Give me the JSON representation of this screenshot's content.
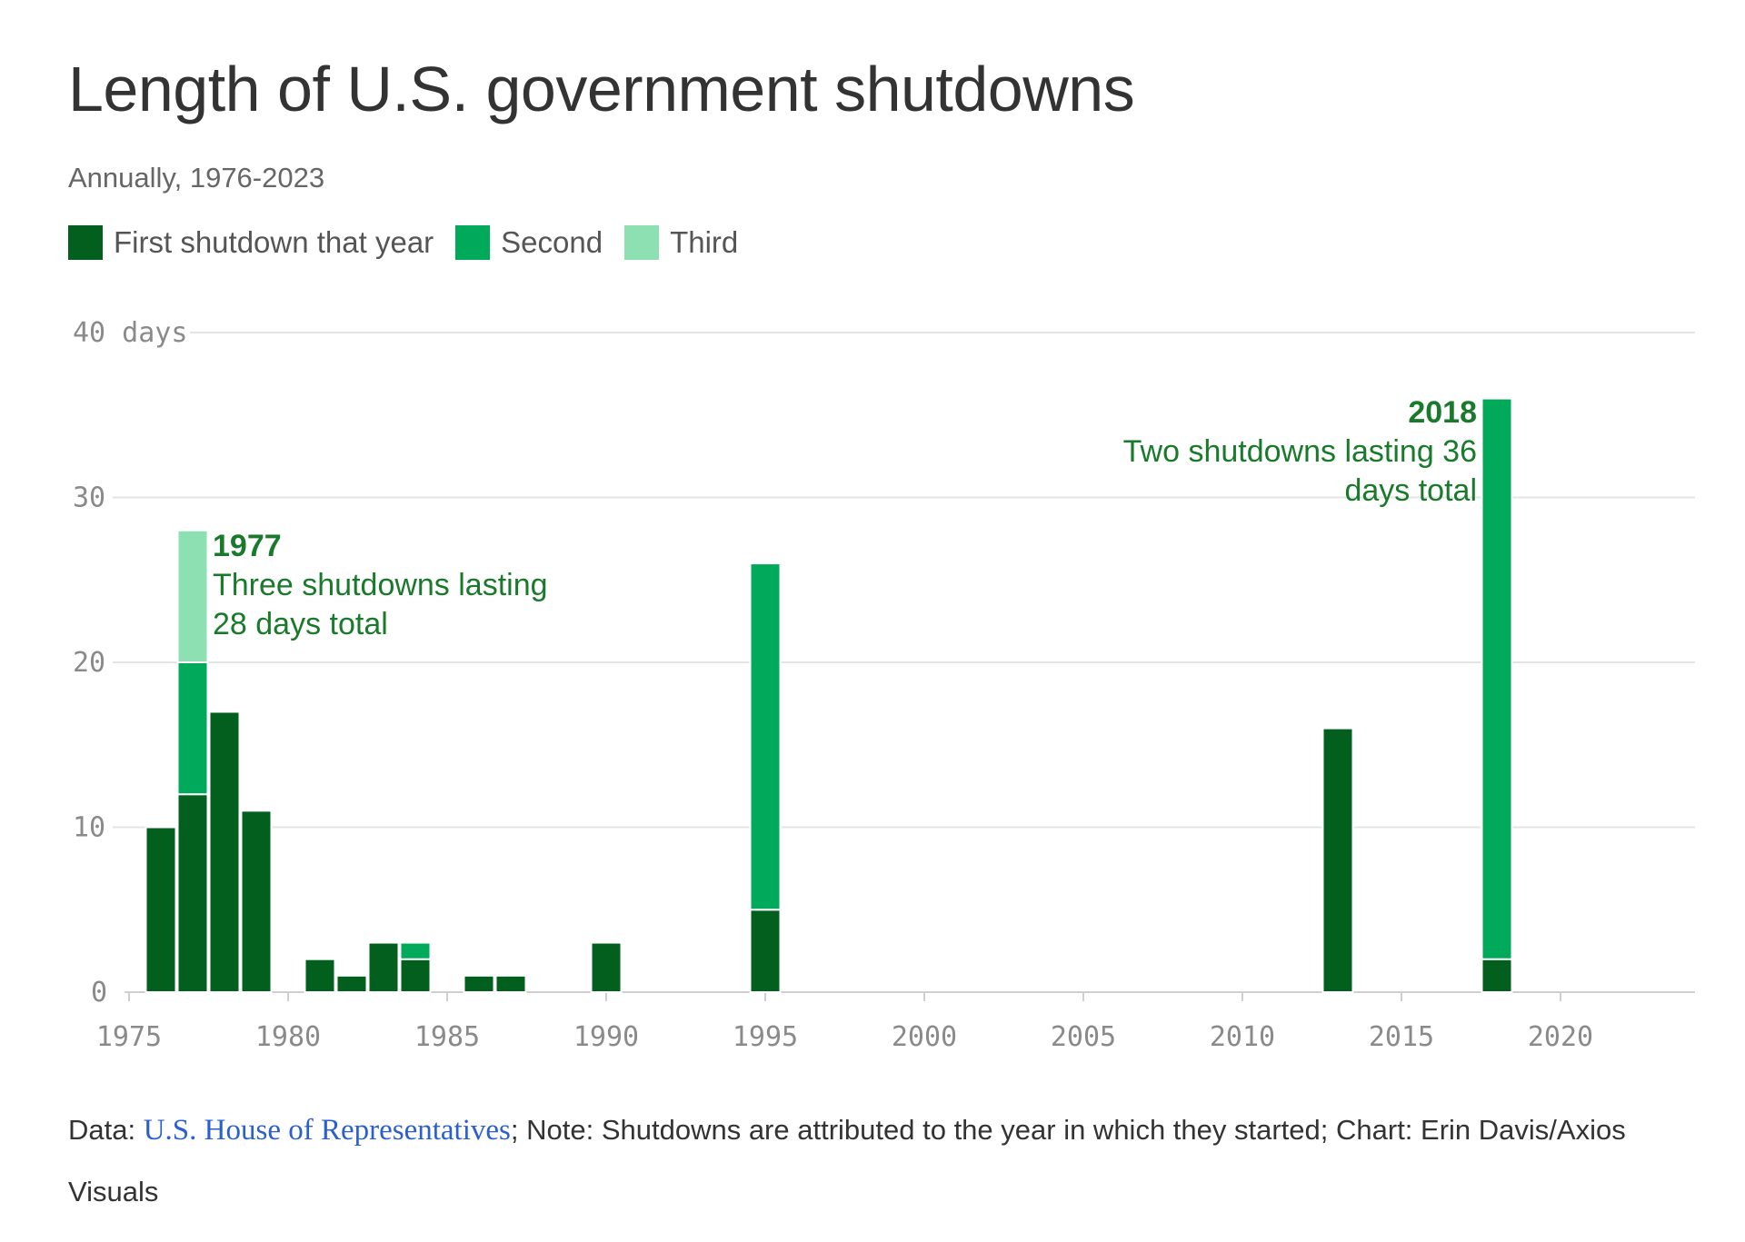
{
  "title": "Length of U.S. government shutdowns",
  "subtitle": "Annually, 1976-2023",
  "legend": [
    {
      "label": "First shutdown that year",
      "color": "#035f1d"
    },
    {
      "label": "Second",
      "color": "#00aa5a"
    },
    {
      "label": "Third",
      "color": "#8de0b1"
    }
  ],
  "chart_data": {
    "type": "bar",
    "stacked": true,
    "title": "Length of U.S. government shutdowns",
    "subtitle": "Annually, 1976-2023",
    "xlabel": "",
    "ylabel": "days",
    "x_range": [
      1975,
      2024
    ],
    "ylim": [
      0,
      40
    ],
    "y_ticks": [
      0,
      10,
      20,
      30,
      40
    ],
    "y_tick_labels": [
      "0",
      "10",
      "20",
      "30",
      "40 days"
    ],
    "x_ticks": [
      1975,
      1980,
      1985,
      1990,
      1995,
      2000,
      2005,
      2010,
      2015,
      2020
    ],
    "grid": true,
    "legend_position": "top-left",
    "series": [
      {
        "name": "First shutdown that year",
        "color": "#035f1d",
        "points": [
          [
            1976,
            10
          ],
          [
            1977,
            12
          ],
          [
            1978,
            17
          ],
          [
            1979,
            11
          ],
          [
            1981,
            2
          ],
          [
            1982,
            1
          ],
          [
            1983,
            3
          ],
          [
            1984,
            2
          ],
          [
            1986,
            1
          ],
          [
            1987,
            1
          ],
          [
            1990,
            3
          ],
          [
            1995,
            5
          ],
          [
            2013,
            16
          ],
          [
            2018,
            2
          ]
        ]
      },
      {
        "name": "Second",
        "color": "#00aa5a",
        "points": [
          [
            1977,
            8
          ],
          [
            1984,
            1
          ],
          [
            1995,
            21
          ],
          [
            2018,
            34
          ]
        ]
      },
      {
        "name": "Third",
        "color": "#8de0b1",
        "points": [
          [
            1977,
            8
          ]
        ]
      }
    ],
    "annotations": [
      {
        "year": "1977",
        "lines": [
          "Three shutdowns lasting",
          "28 days total"
        ]
      },
      {
        "year": "2018",
        "lines": [
          "Two shutdowns lasting 36",
          "days total"
        ]
      }
    ]
  },
  "footer": {
    "prefix": "Data: ",
    "source": "U.S. House of Representatives",
    "rest": "; Note: Shutdowns are attributed to the year in which they started; Chart: Erin Davis/Axios Visuals"
  }
}
